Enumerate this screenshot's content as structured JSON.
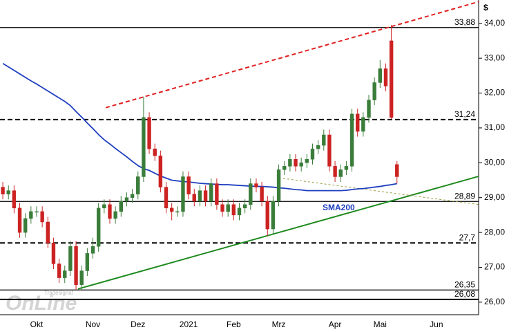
{
  "chart_data": {
    "type": "candlestick",
    "currency": "$",
    "watermark": {
      "brand": "OnLine",
      "by": "Tradesignal"
    },
    "up_color": "#3a7d3a",
    "down_color": "#cc2222",
    "categories": [
      null,
      null,
      null,
      null,
      null,
      null,
      "Okt",
      null,
      null,
      null,
      null,
      null,
      null,
      null,
      null,
      null,
      "Nov",
      null,
      null,
      null,
      null,
      null,
      null,
      null,
      "Dez",
      null,
      null,
      null,
      null,
      null,
      null,
      null,
      null,
      "2021",
      null,
      null,
      null,
      null,
      null,
      null,
      null,
      "Feb",
      null,
      null,
      null,
      null,
      null,
      null,
      null,
      "Mrz",
      null,
      null,
      null,
      null,
      null,
      null,
      null,
      null,
      null,
      "Apr",
      null,
      null,
      null,
      null,
      null,
      null,
      null,
      "Mai",
      null,
      null,
      null,
      null,
      null,
      null,
      null,
      null,
      null,
      "Jun",
      null,
      null,
      null,
      null,
      null,
      null,
      null
    ],
    "open": [
      29.3,
      29.1,
      29.2,
      28.7,
      28.0,
      28.4,
      28.6,
      28.6,
      28.3,
      27.7,
      27.1,
      26.7,
      26.9,
      27.6,
      26.5,
      26.9,
      27.4,
      27.6,
      28.7,
      28.8,
      28.4,
      28.6,
      28.9,
      29.0,
      29.1,
      29.6,
      31.3,
      30.4,
      30.2,
      29.3,
      28.7,
      28.6,
      28.6,
      29.6,
      29.1,
      28.9,
      29.2,
      28.9,
      29.4,
      28.8,
      28.6,
      28.8,
      28.5,
      28.7,
      28.8,
      29.4,
      29.3,
      28.9,
      28.1,
      28.9,
      29.8,
      29.9,
      30.1,
      29.9,
      30.0,
      30.1,
      30.4,
      30.5,
      30.8,
      29.9,
      29.6,
      29.8,
      29.9,
      31.4,
      30.9,
      31.3,
      31.8,
      32.3,
      32.7,
      33.5,
      29.95,
      null,
      null,
      null,
      null,
      null,
      null,
      null,
      null,
      null,
      null,
      null,
      null,
      null,
      null
    ],
    "high": [
      29.45,
      29.35,
      29.35,
      28.85,
      28.55,
      28.75,
      28.75,
      28.75,
      28.45,
      27.85,
      27.25,
      27.05,
      27.75,
      27.75,
      27.05,
      27.55,
      27.85,
      28.85,
      28.95,
      28.95,
      28.75,
      29.05,
      29.15,
      29.25,
      29.75,
      31.9,
      31.45,
      30.55,
      30.35,
      29.45,
      28.85,
      28.75,
      29.75,
      29.75,
      29.25,
      29.35,
      29.35,
      29.55,
      29.55,
      28.95,
      28.95,
      28.95,
      28.85,
      28.95,
      29.55,
      29.55,
      29.45,
      29.05,
      29.05,
      29.95,
      30.05,
      30.25,
      30.25,
      30.15,
      30.25,
      30.55,
      30.65,
      30.95,
      30.95,
      30.05,
      29.95,
      30.05,
      31.55,
      31.55,
      31.45,
      31.95,
      32.45,
      32.95,
      32.85,
      33.95,
      30.05,
      null,
      null,
      null,
      null,
      null,
      null,
      null,
      null,
      null,
      null,
      null,
      null,
      null,
      null
    ],
    "low": [
      28.95,
      28.95,
      28.55,
      27.85,
      27.85,
      28.25,
      28.45,
      28.15,
      27.55,
      26.95,
      26.55,
      26.55,
      26.75,
      26.35,
      26.35,
      26.75,
      27.25,
      27.45,
      28.55,
      28.25,
      28.25,
      28.45,
      28.75,
      28.85,
      28.95,
      29.45,
      30.25,
      30.05,
      29.15,
      28.55,
      28.35,
      28.45,
      28.45,
      28.95,
      28.75,
      28.75,
      28.75,
      28.75,
      28.65,
      28.45,
      28.45,
      28.35,
      28.35,
      28.55,
      28.65,
      29.15,
      28.75,
      27.9,
      27.95,
      28.75,
      29.65,
      29.75,
      29.75,
      29.75,
      29.85,
      29.95,
      30.25,
      30.35,
      29.75,
      29.45,
      29.45,
      29.65,
      29.75,
      30.75,
      30.75,
      31.15,
      31.65,
      32.15,
      32.05,
      31.25,
      29.4,
      null,
      null,
      null,
      null,
      null,
      null,
      null,
      null,
      null,
      null,
      null,
      null,
      null,
      null
    ],
    "close": [
      29.1,
      29.2,
      28.7,
      28.0,
      28.4,
      28.6,
      28.6,
      28.3,
      27.7,
      27.1,
      26.7,
      26.9,
      27.6,
      26.5,
      26.9,
      27.4,
      27.6,
      28.7,
      28.8,
      28.4,
      28.6,
      28.9,
      29.0,
      29.1,
      29.6,
      31.3,
      30.4,
      30.2,
      29.3,
      28.7,
      28.6,
      28.6,
      29.6,
      29.1,
      28.9,
      29.2,
      28.9,
      29.4,
      28.8,
      28.6,
      28.8,
      28.5,
      28.7,
      28.8,
      29.4,
      29.3,
      28.9,
      28.1,
      28.9,
      29.8,
      29.9,
      30.1,
      29.9,
      30.0,
      30.1,
      30.4,
      30.5,
      30.8,
      29.9,
      29.6,
      29.8,
      29.9,
      31.4,
      30.9,
      31.3,
      31.8,
      32.3,
      32.7,
      32.2,
      31.3,
      29.6,
      null,
      null,
      null,
      null,
      null,
      null,
      null,
      null,
      null,
      null,
      null,
      null,
      null,
      null
    ],
    "series": [
      {
        "name": "SMA200",
        "color": "#1f3fbf",
        "values": [
          32.85,
          32.75,
          32.65,
          32.55,
          32.45,
          32.35,
          32.26,
          32.16,
          32.06,
          31.96,
          31.86,
          31.76,
          31.64,
          31.47,
          31.31,
          31.14,
          30.98,
          30.81,
          30.66,
          30.54,
          30.41,
          30.29,
          30.17,
          30.04,
          29.92,
          29.83,
          29.78,
          29.7,
          29.62,
          29.56,
          29.5,
          29.48,
          29.46,
          29.45,
          29.43,
          29.41,
          29.4,
          29.39,
          29.38,
          29.37,
          29.37,
          29.36,
          29.35,
          29.34,
          29.33,
          29.32,
          29.32,
          29.31,
          29.3,
          29.28,
          29.27,
          29.25,
          29.23,
          29.22,
          29.2,
          29.2,
          29.2,
          29.2,
          29.2,
          29.2,
          29.2,
          29.21,
          29.23,
          29.25,
          29.26,
          29.28,
          29.3,
          29.32,
          29.35,
          29.37,
          29.4,
          null,
          null,
          null,
          null,
          null,
          null,
          null,
          null,
          null,
          null,
          null,
          null,
          null,
          null
        ]
      }
    ],
    "levels": [
      {
        "value": 33.88,
        "label": "33,88",
        "style": "solid"
      },
      {
        "value": 31.24,
        "label": "31,24",
        "style": "dashed"
      },
      {
        "value": 28.89,
        "label": "28,89",
        "style": "solid"
      },
      {
        "value": 27.7,
        "label": "27,7",
        "style": "dashed"
      },
      {
        "value": 26.35,
        "label": "26,35",
        "style": "solid"
      },
      {
        "value": 26.08,
        "label": "26,08",
        "style": "thick"
      }
    ],
    "trend_lines": [
      {
        "color": "#e02020",
        "style": "dashed",
        "x": [
          18.27,
          84.5
        ],
        "y": [
          31.58,
          34.62
        ]
      },
      {
        "color": "#1e8a1e",
        "style": "solid",
        "x": [
          13.36,
          84.5
        ],
        "y": [
          26.38,
          29.61
        ]
      },
      {
        "color": "#9a9a40",
        "style": "dotted",
        "x": [
          49.8,
          84.5
        ],
        "y": [
          29.55,
          28.8
        ]
      }
    ],
    "ylim": [
      25.64,
      34.67
    ],
    "yticks": [
      {
        "value": 26,
        "label": "26,00"
      },
      {
        "value": 27,
        "label": "27,00"
      },
      {
        "value": 28,
        "label": "28,00"
      },
      {
        "value": 29,
        "label": "29,00"
      },
      {
        "value": 30,
        "label": "30,00"
      },
      {
        "value": 31,
        "label": "31,00"
      },
      {
        "value": 32,
        "label": "32,00"
      },
      {
        "value": 33,
        "label": "33,00"
      },
      {
        "value": 34,
        "label": "34,00"
      }
    ]
  }
}
